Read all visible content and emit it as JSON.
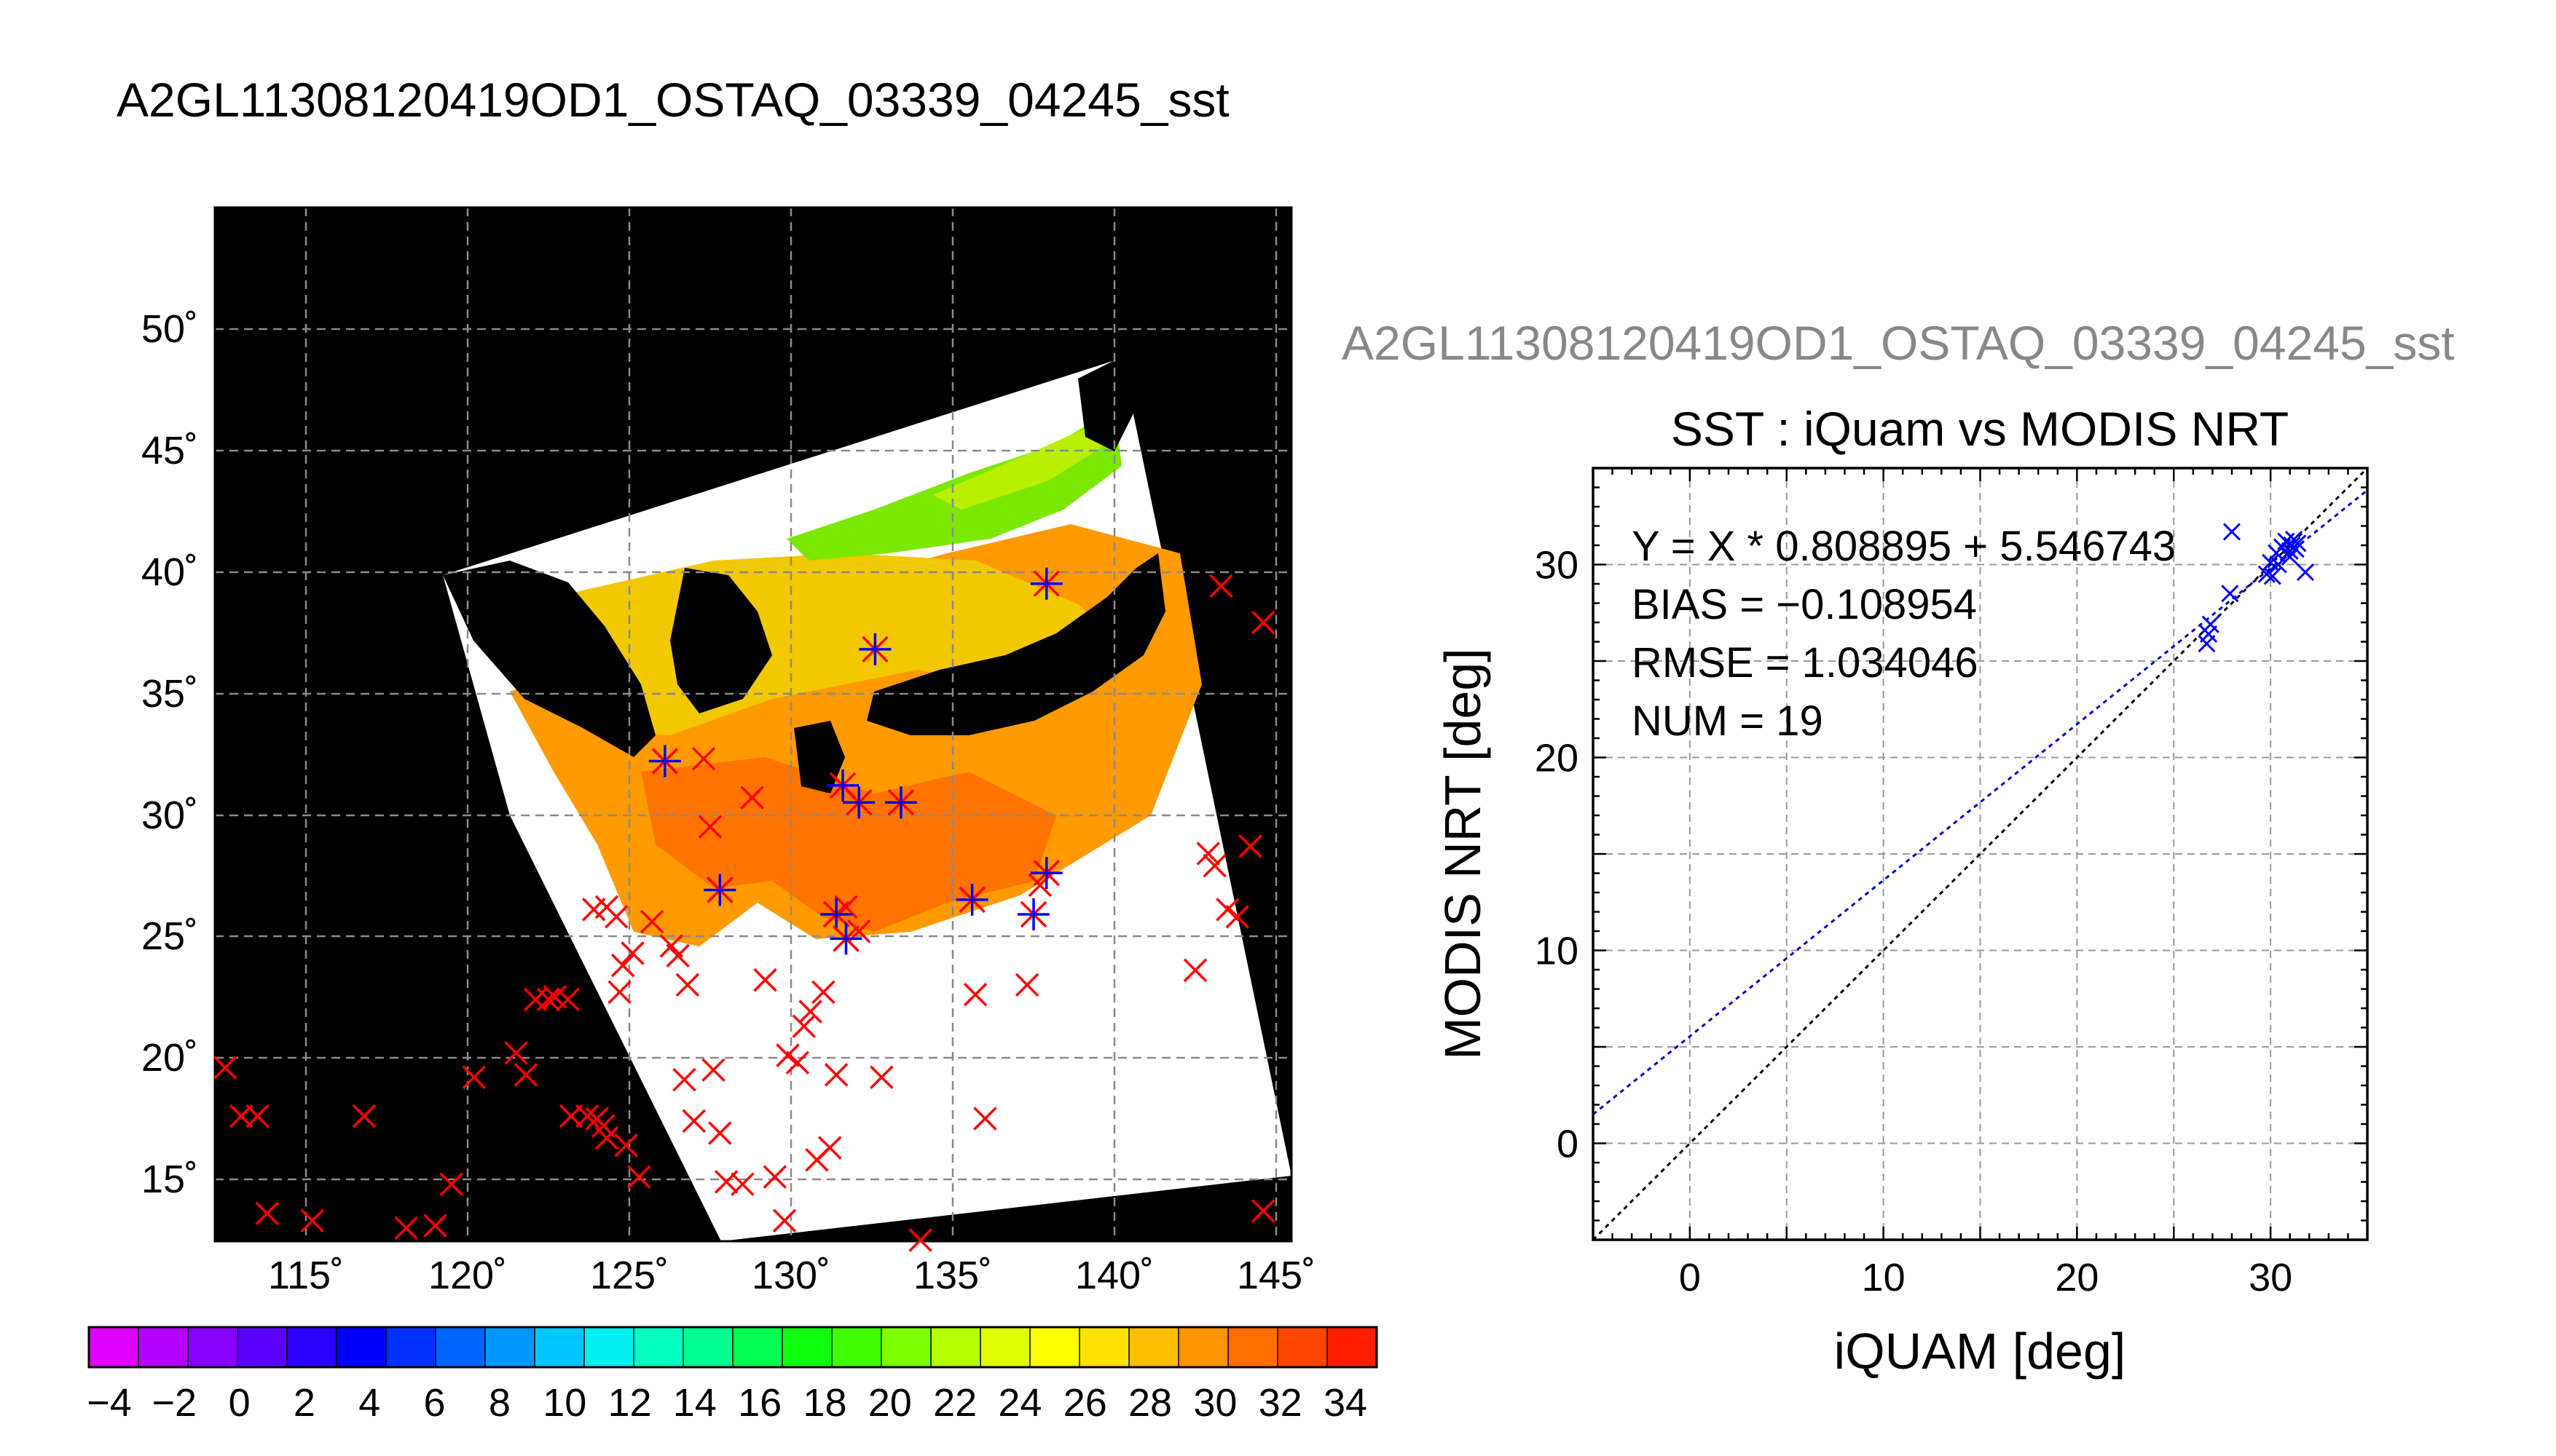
{
  "map_title": "A2GL11308120419OD1_OSTAQ_03339_04245_sst",
  "scatter_header": "A2GL11308120419OD1_OSTAQ_03339_04245_sst",
  "map": {
    "lon_ticks": [
      "115˚",
      "120˚",
      "125˚",
      "130˚",
      "135˚",
      "140˚",
      "145˚"
    ],
    "lat_ticks": [
      "15˚",
      "20˚",
      "25˚",
      "30˚",
      "35˚",
      "40˚",
      "45˚",
      "50˚"
    ],
    "colorbar_labels": [
      "−4",
      "−2",
      "0",
      "2",
      "4",
      "6",
      "8",
      "10",
      "12",
      "14",
      "16",
      "18",
      "20",
      "22",
      "24",
      "26",
      "28",
      "30",
      "32",
      "34"
    ],
    "colorbar_colors": [
      "#e000ff",
      "#b400ff",
      "#8800ff",
      "#5a00ff",
      "#2a00ff",
      "#0000ff",
      "#0030ff",
      "#0064ff",
      "#0096ff",
      "#00c8ff",
      "#00f0f0",
      "#00ffc0",
      "#00ff90",
      "#00ff50",
      "#10ff10",
      "#40ff00",
      "#7cff00",
      "#b4ff00",
      "#e0ff00",
      "#ffff00",
      "#ffe000",
      "#ffbe00",
      "#ff9600",
      "#ff6e00",
      "#ff4600",
      "#ff1e00"
    ],
    "land_color": "#000000",
    "nodata_color": "#ffffff",
    "marker_color": "#ff0000",
    "match_marker_color": "#0000ff"
  },
  "chart_data": {
    "type": "scatter",
    "title": "SST : iQuam vs MODIS NRT",
    "xlabel": "iQUAM [deg]",
    "ylabel": "MODIS NRT [deg]",
    "xlim": [
      -5,
      35
    ],
    "ylim": [
      -5,
      35
    ],
    "x_ticks": [
      0,
      10,
      20,
      30
    ],
    "y_ticks": [
      0,
      10,
      20,
      30
    ],
    "grid": true,
    "stats": {
      "fit": "Y = X * 0.808895 + 5.546743",
      "bias": "BIAS = −0.108954",
      "rmse": "RMSE = 1.034046",
      "num": "NUM = 19"
    },
    "fit_slope": 0.808895,
    "fit_intercept": 5.546743,
    "points": [
      {
        "x": 26.7,
        "y": 25.9
      },
      {
        "x": 26.8,
        "y": 26.4
      },
      {
        "x": 26.9,
        "y": 26.9
      },
      {
        "x": 27.9,
        "y": 28.5
      },
      {
        "x": 28.0,
        "y": 31.7
      },
      {
        "x": 29.8,
        "y": 29.5
      },
      {
        "x": 30.0,
        "y": 30.1
      },
      {
        "x": 30.1,
        "y": 29.4
      },
      {
        "x": 30.3,
        "y": 30.6
      },
      {
        "x": 30.4,
        "y": 30.0
      },
      {
        "x": 30.6,
        "y": 30.9
      },
      {
        "x": 30.8,
        "y": 31.2
      },
      {
        "x": 31.0,
        "y": 30.7
      },
      {
        "x": 31.1,
        "y": 31.0
      },
      {
        "x": 31.2,
        "y": 31.3
      },
      {
        "x": 31.3,
        "y": 30.8
      },
      {
        "x": 31.4,
        "y": 31.1
      },
      {
        "x": 31.0,
        "y": 30.4
      },
      {
        "x": 31.8,
        "y": 29.6
      }
    ],
    "fit_color": "#0000cc",
    "identity_color": "#000000",
    "point_color": "#0000ff"
  }
}
